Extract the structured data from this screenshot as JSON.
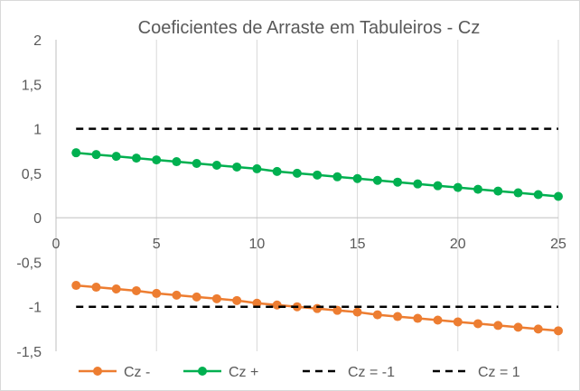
{
  "chart_data": {
    "type": "line",
    "title": "Coeficientes de Arraste em Tabuleiros - Cz",
    "xlabel": "",
    "ylabel": "",
    "xlim": [
      0,
      25
    ],
    "ylim": [
      -1.5,
      2
    ],
    "x_ticks": [
      0,
      5,
      10,
      15,
      20,
      25
    ],
    "x_tick_labels": [
      "0",
      "5",
      "10",
      "15",
      "20",
      "25"
    ],
    "y_ticks": [
      2,
      1.5,
      1,
      0.5,
      0,
      -0.5,
      -1,
      -1.5
    ],
    "y_tick_labels": [
      "2",
      "1,5",
      "1",
      "0,5",
      "0",
      "-0,5",
      "-1",
      "-1,5"
    ],
    "grid": "vertical",
    "legend_position": "bottom",
    "x": [
      1,
      2,
      3,
      4,
      5,
      6,
      7,
      8,
      9,
      10,
      11,
      12,
      13,
      14,
      15,
      16,
      17,
      18,
      19,
      20,
      21,
      22,
      23,
      24,
      25
    ],
    "series": [
      {
        "name": "Cz -",
        "color": "#ED7D31",
        "style": "line-marker",
        "values": [
          -0.76,
          -0.78,
          -0.8,
          -0.82,
          -0.85,
          -0.87,
          -0.89,
          -0.91,
          -0.93,
          -0.96,
          -0.98,
          -1.0,
          -1.02,
          -1.04,
          -1.06,
          -1.09,
          -1.11,
          -1.13,
          -1.15,
          -1.17,
          -1.19,
          -1.21,
          -1.23,
          -1.25,
          -1.27
        ]
      },
      {
        "name": "Cz +",
        "color": "#00B050",
        "style": "line-marker",
        "values": [
          0.73,
          0.71,
          0.69,
          0.67,
          0.65,
          0.63,
          0.61,
          0.59,
          0.57,
          0.55,
          0.52,
          0.5,
          0.48,
          0.46,
          0.44,
          0.42,
          0.4,
          0.38,
          0.36,
          0.34,
          0.32,
          0.3,
          0.28,
          0.26,
          0.24
        ]
      },
      {
        "name": "Cz = -1",
        "color": "#000000",
        "style": "dashed",
        "values": [
          -1,
          -1,
          -1,
          -1,
          -1,
          -1,
          -1,
          -1,
          -1,
          -1,
          -1,
          -1,
          -1,
          -1,
          -1,
          -1,
          -1,
          -1,
          -1,
          -1,
          -1,
          -1,
          -1,
          -1,
          -1
        ]
      },
      {
        "name": "Cz = 1",
        "color": "#000000",
        "style": "dashed",
        "values": [
          1,
          1,
          1,
          1,
          1,
          1,
          1,
          1,
          1,
          1,
          1,
          1,
          1,
          1,
          1,
          1,
          1,
          1,
          1,
          1,
          1,
          1,
          1,
          1,
          1
        ]
      }
    ],
    "axis_color": "#bfbfbf",
    "grid_color": "#d9d9d9",
    "text_color": "#595959"
  }
}
